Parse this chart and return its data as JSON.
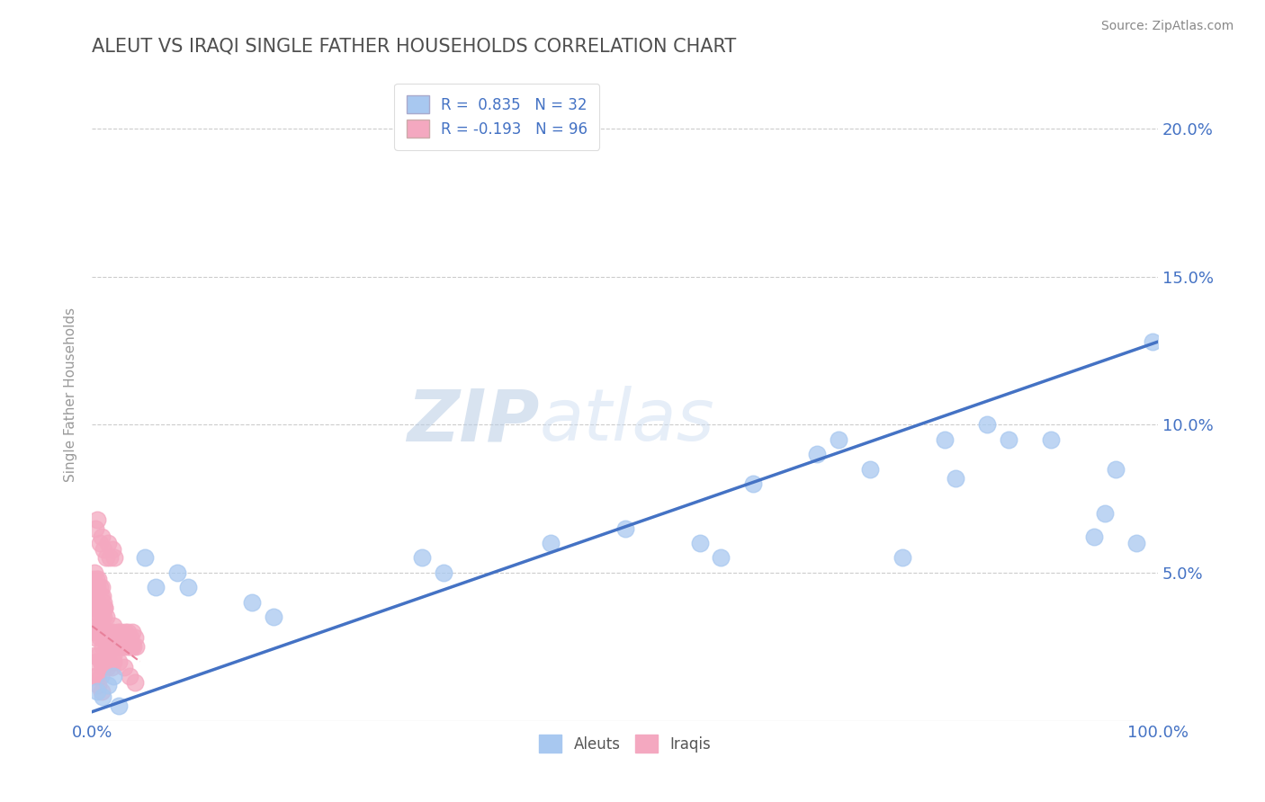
{
  "title": "ALEUT VS IRAQI SINGLE FATHER HOUSEHOLDS CORRELATION CHART",
  "source": "Source: ZipAtlas.com",
  "ylabel": "Single Father Households",
  "xlim": [
    0,
    1.0
  ],
  "ylim": [
    0,
    0.22
  ],
  "legend1_label": "R =  0.835   N = 32",
  "legend2_label": "R = -0.193   N = 96",
  "aleut_color": "#a8c8f0",
  "iraqi_color": "#f4a8c0",
  "aleut_line_color": "#4472c4",
  "iraqi_line_color": "#e8809a",
  "watermark_zip": "ZIP",
  "watermark_atlas": "atlas",
  "background_color": "#ffffff",
  "grid_color": "#cccccc",
  "title_color": "#505050",
  "tick_color": "#4472c4",
  "aleut_scatter_x": [
    0.005,
    0.01,
    0.015,
    0.02,
    0.025,
    0.05,
    0.06,
    0.08,
    0.09,
    0.15,
    0.17,
    0.31,
    0.33,
    0.43,
    0.5,
    0.57,
    0.59,
    0.62,
    0.68,
    0.7,
    0.73,
    0.76,
    0.8,
    0.81,
    0.84,
    0.86,
    0.9,
    0.94,
    0.95,
    0.96,
    0.98,
    0.995
  ],
  "aleut_scatter_y": [
    0.01,
    0.008,
    0.012,
    0.015,
    0.005,
    0.055,
    0.045,
    0.05,
    0.045,
    0.04,
    0.035,
    0.055,
    0.05,
    0.06,
    0.065,
    0.06,
    0.055,
    0.08,
    0.09,
    0.095,
    0.085,
    0.055,
    0.095,
    0.082,
    0.1,
    0.095,
    0.095,
    0.062,
    0.07,
    0.085,
    0.06,
    0.128
  ],
  "iraqi_scatter_x": [
    0.002,
    0.003,
    0.004,
    0.005,
    0.006,
    0.007,
    0.008,
    0.009,
    0.01,
    0.011,
    0.012,
    0.013,
    0.014,
    0.015,
    0.016,
    0.017,
    0.018,
    0.019,
    0.02,
    0.021,
    0.022,
    0.023,
    0.024,
    0.025,
    0.026,
    0.027,
    0.028,
    0.029,
    0.03,
    0.031,
    0.032,
    0.033,
    0.034,
    0.035,
    0.036,
    0.037,
    0.038,
    0.039,
    0.04,
    0.041,
    0.003,
    0.005,
    0.007,
    0.009,
    0.011,
    0.013,
    0.015,
    0.017,
    0.019,
    0.021,
    0.002,
    0.004,
    0.006,
    0.008,
    0.01,
    0.012,
    0.014,
    0.016,
    0.018,
    0.02,
    0.003,
    0.005,
    0.006,
    0.008,
    0.009,
    0.001,
    0.002,
    0.003,
    0.004,
    0.005,
    0.006,
    0.007,
    0.008,
    0.009,
    0.01,
    0.011,
    0.012,
    0.013,
    0.001,
    0.002,
    0.003,
    0.004,
    0.005,
    0.006,
    0.007,
    0.008,
    0.009,
    0.01,
    0.011,
    0.012,
    0.015,
    0.02,
    0.025,
    0.03,
    0.035,
    0.04
  ],
  "iraqi_scatter_y": [
    0.03,
    0.028,
    0.032,
    0.035,
    0.03,
    0.028,
    0.032,
    0.03,
    0.025,
    0.028,
    0.03,
    0.025,
    0.028,
    0.03,
    0.028,
    0.025,
    0.028,
    0.03,
    0.032,
    0.028,
    0.025,
    0.028,
    0.03,
    0.025,
    0.028,
    0.03,
    0.025,
    0.028,
    0.025,
    0.03,
    0.028,
    0.025,
    0.03,
    0.025,
    0.028,
    0.025,
    0.03,
    0.025,
    0.028,
    0.025,
    0.065,
    0.068,
    0.06,
    0.062,
    0.058,
    0.055,
    0.06,
    0.055,
    0.058,
    0.055,
    0.022,
    0.02,
    0.022,
    0.02,
    0.018,
    0.02,
    0.018,
    0.02,
    0.018,
    0.02,
    0.015,
    0.015,
    0.012,
    0.015,
    0.01,
    0.04,
    0.038,
    0.042,
    0.04,
    0.038,
    0.04,
    0.035,
    0.038,
    0.035,
    0.038,
    0.035,
    0.038,
    0.035,
    0.048,
    0.05,
    0.045,
    0.048,
    0.045,
    0.048,
    0.045,
    0.042,
    0.045,
    0.042,
    0.04,
    0.038,
    0.025,
    0.022,
    0.02,
    0.018,
    0.015,
    0.013
  ],
  "aleut_line_x": [
    0.0,
    1.0
  ],
  "aleut_line_y": [
    0.003,
    0.128
  ],
  "iraqi_line_x": [
    0.0,
    0.045
  ],
  "iraqi_line_y": [
    0.032,
    0.02
  ]
}
